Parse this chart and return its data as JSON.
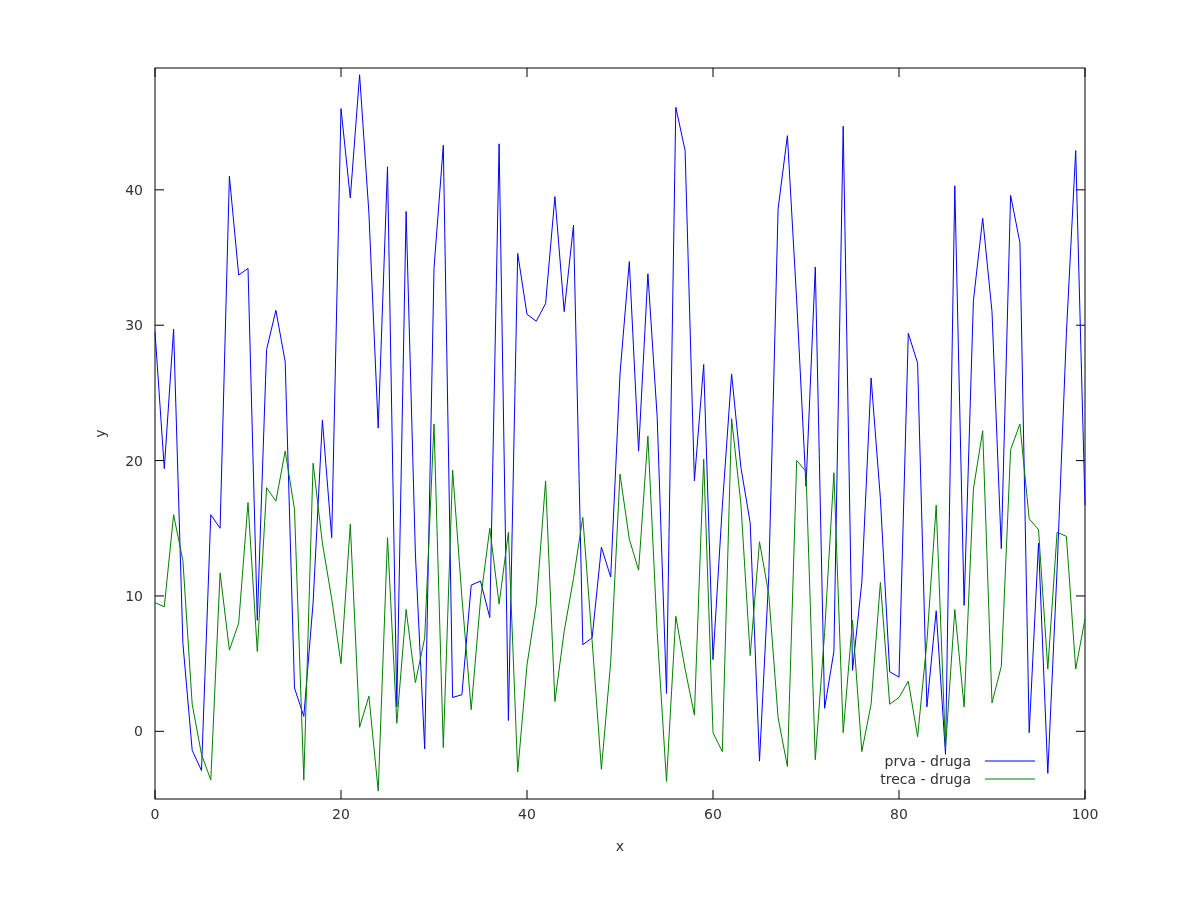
{
  "chart_data": {
    "type": "line",
    "xlabel": "x",
    "ylabel": "y",
    "x": [
      0,
      1,
      2,
      3,
      4,
      5,
      6,
      7,
      8,
      9,
      10,
      11,
      12,
      13,
      14,
      15,
      16,
      17,
      18,
      19,
      20,
      21,
      22,
      23,
      24,
      25,
      26,
      27,
      28,
      29,
      30,
      31,
      32,
      33,
      34,
      35,
      36,
      37,
      38,
      39,
      40,
      41,
      42,
      43,
      44,
      45,
      46,
      47,
      48,
      49,
      50,
      51,
      52,
      53,
      54,
      55,
      56,
      57,
      58,
      59,
      60,
      61,
      62,
      63,
      64,
      65,
      66,
      67,
      68,
      69,
      70,
      71,
      72,
      73,
      74,
      75,
      76,
      77,
      78,
      79,
      80,
      81,
      82,
      83,
      84,
      85,
      86,
      87,
      88,
      89,
      90,
      91,
      92,
      93,
      94,
      95,
      96,
      97,
      98,
      99,
      100
    ],
    "series": [
      {
        "name": "prva - druga",
        "color": "#0000ff",
        "values": [
          29.5,
          19.4,
          29.7,
          6.5,
          -1.4,
          -2.9,
          16,
          15,
          41,
          33.7,
          34.2,
          8.2,
          28.2,
          31.1,
          27.3,
          3.2,
          1.1,
          9.5,
          23,
          14.3,
          46,
          39.4,
          48.5,
          38.3,
          22.4,
          41.7,
          1.8,
          38.4,
          13.1,
          -1.3,
          34.2,
          43.3,
          2.5,
          2.7,
          10.8,
          11.1,
          8.4,
          43.4,
          0.8,
          35.3,
          30.8,
          30.3,
          31.6,
          39.5,
          31,
          37.4,
          6.4,
          6.9,
          13.6,
          11.4,
          26.4,
          34.7,
          20.7,
          33.8,
          23.2,
          2.8,
          46.1,
          42.9,
          18.5,
          27.1,
          5.3,
          16.6,
          26.4,
          19.5,
          15.4,
          -2.2,
          11.5,
          38.6,
          44,
          31.8,
          18.1,
          34.3,
          1.7,
          5.9,
          44.7,
          4.5,
          11,
          26.1,
          17.2,
          4.4,
          4,
          29.4,
          27.2,
          1.8,
          8.9,
          -1.7,
          40.3,
          9.3,
          31.8,
          37.9,
          31,
          13.5,
          39.6,
          36.1,
          -0.1,
          13.9,
          -3.1,
          12,
          29.4,
          42.9,
          16.7
        ]
      },
      {
        "name": "treca - druga",
        "color": "#008000",
        "values": [
          9.5,
          9.2,
          16,
          12.6,
          2,
          -1.7,
          -3.6,
          11.7,
          6,
          8,
          16.9,
          5.9,
          18,
          17,
          20.7,
          16.4,
          -3.6,
          19.8,
          13.9,
          9.8,
          5,
          15.3,
          0.3,
          2.6,
          -4.4,
          14.3,
          0.6,
          9,
          3.6,
          6.9,
          22.7,
          -1.2,
          19.3,
          9.9,
          1.6,
          9.7,
          15,
          9.4,
          14.7,
          -3,
          4.9,
          9.4,
          18.5,
          2.2,
          7.4,
          11.3,
          15.8,
          6.7,
          -2.8,
          5.1,
          19,
          14.2,
          11.9,
          21.8,
          7.3,
          -3.7,
          8.5,
          4.6,
          1.2,
          20.1,
          -0.1,
          -1.5,
          23.1,
          16.8,
          5.6,
          14,
          10.1,
          1,
          -2.6,
          20,
          19.2,
          -2.1,
          7.3,
          19.1,
          -0.1,
          8.2,
          -1.5,
          2,
          11,
          2,
          2.5,
          3.7,
          -0.4,
          6.6,
          16.7,
          -1.3,
          9,
          1.8,
          17.9,
          22.2,
          2.1,
          4.8,
          20.8,
          22.7,
          15.7,
          14.9,
          4.6,
          14.7,
          14.4,
          4.6,
          8.3
        ]
      }
    ],
    "xlim": [
      0,
      100
    ],
    "xticks": [
      0,
      20,
      40,
      60,
      80,
      100
    ],
    "ylim": [
      -5,
      49
    ],
    "yticks": [
      0,
      10,
      20,
      30,
      40
    ],
    "legend": "bottom right",
    "grid": false
  }
}
